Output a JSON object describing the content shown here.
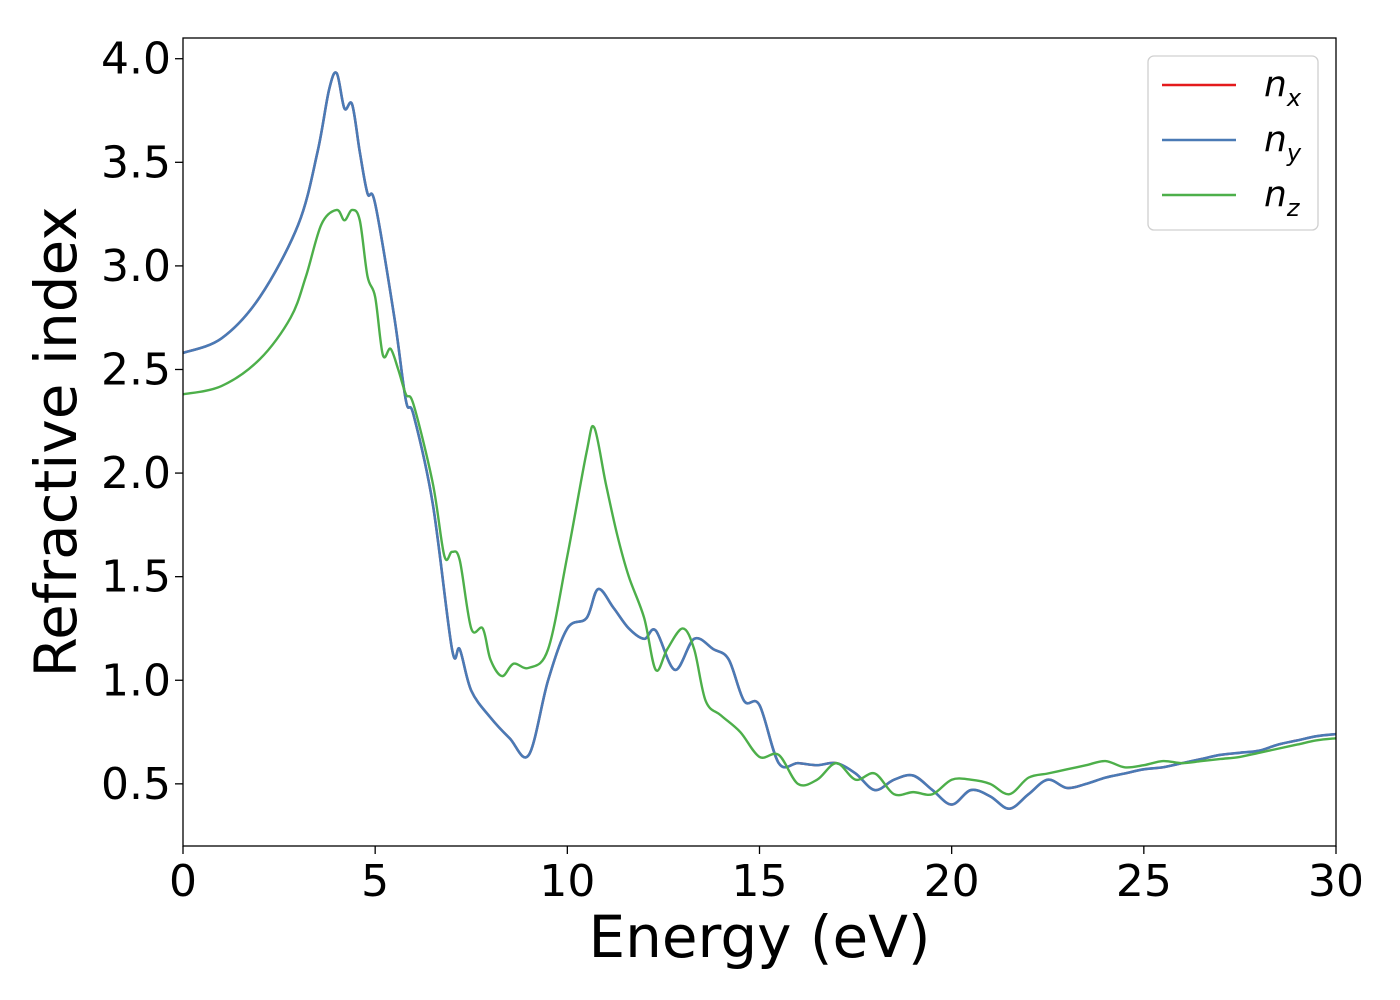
{
  "chart_data": {
    "type": "line",
    "xlabel": "Energy (eV)",
    "ylabel": "Refractive index",
    "xlim": [
      0,
      30
    ],
    "ylim": [
      0.2,
      4.1
    ],
    "xticks": [
      0,
      5,
      10,
      15,
      20,
      25,
      30
    ],
    "yticks": [
      0.5,
      1.0,
      1.5,
      2.0,
      2.5,
      3.0,
      3.5,
      4.0
    ],
    "grid": false,
    "legend_position": "top-right",
    "series": [
      {
        "name": "n_x",
        "label_base": "n",
        "label_sub": "x",
        "color": "#e41a1c",
        "x": [
          0,
          1,
          2,
          3,
          3.5,
          3.8,
          4.0,
          4.2,
          4.4,
          4.6,
          4.8,
          5.0,
          5.5,
          5.8,
          6.0,
          6.5,
          7.0,
          7.2,
          7.5,
          8.0,
          8.5,
          9.0,
          9.5,
          10.0,
          10.5,
          10.8,
          11.2,
          11.6,
          12.0,
          12.3,
          12.8,
          13.3,
          13.8,
          14.2,
          14.6,
          15.0,
          15.5,
          16.0,
          16.5,
          17.0,
          17.5,
          18.0,
          18.5,
          19.0,
          19.5,
          20.0,
          20.5,
          21.0,
          21.5,
          22.0,
          22.5,
          23.0,
          23.5,
          24.0,
          24.5,
          25.0,
          25.5,
          26.0,
          26.5,
          27.0,
          27.5,
          28.0,
          28.5,
          29.0,
          29.5,
          30.0
        ],
        "y": [
          2.58,
          2.65,
          2.85,
          3.2,
          3.55,
          3.85,
          3.93,
          3.76,
          3.78,
          3.55,
          3.35,
          3.3,
          2.75,
          2.35,
          2.28,
          1.85,
          1.15,
          1.15,
          0.95,
          0.82,
          0.72,
          0.64,
          1.0,
          1.25,
          1.3,
          1.44,
          1.35,
          1.25,
          1.2,
          1.24,
          1.05,
          1.2,
          1.15,
          1.1,
          0.9,
          0.88,
          0.6,
          0.6,
          0.59,
          0.6,
          0.55,
          0.47,
          0.52,
          0.54,
          0.47,
          0.4,
          0.47,
          0.44,
          0.38,
          0.45,
          0.52,
          0.48,
          0.5,
          0.53,
          0.55,
          0.57,
          0.58,
          0.6,
          0.62,
          0.64,
          0.65,
          0.66,
          0.69,
          0.71,
          0.73,
          0.74
        ]
      },
      {
        "name": "n_y",
        "label_base": "n",
        "label_sub": "y",
        "color": "#4a7ab5",
        "x": [
          0,
          1,
          2,
          3,
          3.5,
          3.8,
          4.0,
          4.2,
          4.4,
          4.6,
          4.8,
          5.0,
          5.5,
          5.8,
          6.0,
          6.5,
          7.0,
          7.2,
          7.5,
          8.0,
          8.5,
          9.0,
          9.5,
          10.0,
          10.5,
          10.8,
          11.2,
          11.6,
          12.0,
          12.3,
          12.8,
          13.3,
          13.8,
          14.2,
          14.6,
          15.0,
          15.5,
          16.0,
          16.5,
          17.0,
          17.5,
          18.0,
          18.5,
          19.0,
          19.5,
          20.0,
          20.5,
          21.0,
          21.5,
          22.0,
          22.5,
          23.0,
          23.5,
          24.0,
          24.5,
          25.0,
          25.5,
          26.0,
          26.5,
          27.0,
          27.5,
          28.0,
          28.5,
          29.0,
          29.5,
          30.0
        ],
        "y": [
          2.58,
          2.65,
          2.85,
          3.2,
          3.55,
          3.85,
          3.93,
          3.76,
          3.78,
          3.55,
          3.35,
          3.3,
          2.75,
          2.35,
          2.28,
          1.85,
          1.15,
          1.15,
          0.95,
          0.82,
          0.72,
          0.64,
          1.0,
          1.25,
          1.3,
          1.44,
          1.35,
          1.25,
          1.2,
          1.24,
          1.05,
          1.2,
          1.15,
          1.1,
          0.9,
          0.88,
          0.6,
          0.6,
          0.59,
          0.6,
          0.55,
          0.47,
          0.52,
          0.54,
          0.47,
          0.4,
          0.47,
          0.44,
          0.38,
          0.45,
          0.52,
          0.48,
          0.5,
          0.53,
          0.55,
          0.57,
          0.58,
          0.6,
          0.62,
          0.64,
          0.65,
          0.66,
          0.69,
          0.71,
          0.73,
          0.74
        ]
      },
      {
        "name": "n_z",
        "label_base": "n",
        "label_sub": "z",
        "color": "#4daf4a",
        "x": [
          0,
          1,
          2,
          2.8,
          3.2,
          3.6,
          4.0,
          4.2,
          4.4,
          4.6,
          4.8,
          5.0,
          5.2,
          5.4,
          5.6,
          5.8,
          6.0,
          6.5,
          6.8,
          7.0,
          7.2,
          7.5,
          7.8,
          8.0,
          8.3,
          8.6,
          9.0,
          9.5,
          10.0,
          10.5,
          10.7,
          11.0,
          11.3,
          11.6,
          12.0,
          12.3,
          12.6,
          13.0,
          13.3,
          13.6,
          14.0,
          14.5,
          15.0,
          15.5,
          16.0,
          16.5,
          17.0,
          17.5,
          18.0,
          18.5,
          19.0,
          19.5,
          20.0,
          20.5,
          21.0,
          21.5,
          22.0,
          22.5,
          23.0,
          23.5,
          24.0,
          24.5,
          25.0,
          25.5,
          26.0,
          26.5,
          27.0,
          27.5,
          28.0,
          28.5,
          29.0,
          29.5,
          30.0
        ],
        "y": [
          2.38,
          2.42,
          2.55,
          2.75,
          2.95,
          3.2,
          3.27,
          3.22,
          3.27,
          3.22,
          2.95,
          2.85,
          2.57,
          2.6,
          2.5,
          2.38,
          2.33,
          1.95,
          1.6,
          1.62,
          1.58,
          1.25,
          1.25,
          1.1,
          1.02,
          1.08,
          1.06,
          1.15,
          1.6,
          2.1,
          2.22,
          1.95,
          1.7,
          1.5,
          1.3,
          1.05,
          1.15,
          1.25,
          1.15,
          0.9,
          0.83,
          0.75,
          0.63,
          0.64,
          0.5,
          0.52,
          0.6,
          0.52,
          0.55,
          0.45,
          0.46,
          0.45,
          0.52,
          0.52,
          0.5,
          0.45,
          0.53,
          0.55,
          0.57,
          0.59,
          0.61,
          0.58,
          0.59,
          0.61,
          0.6,
          0.61,
          0.62,
          0.63,
          0.65,
          0.67,
          0.69,
          0.71,
          0.72
        ]
      }
    ]
  }
}
